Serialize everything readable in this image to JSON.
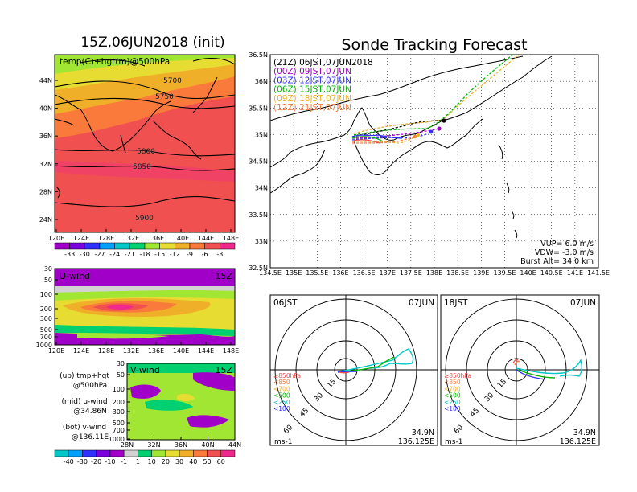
{
  "title_left": "15Z,06JUN2018 (init)",
  "title_right": "Sonde Tracking Forecast",
  "map_panel": {
    "label": "temp(C)+hgt(m)@500hPa",
    "lat_ticks": [
      "44N",
      "40N",
      "36N",
      "32N",
      "28N",
      "24N"
    ],
    "lon_ticks": [
      "120E",
      "124E",
      "128E",
      "132E",
      "136E",
      "140E",
      "144E",
      "148E"
    ],
    "contour_labels": [
      "5700",
      "5750",
      "5800",
      "5850",
      "5900"
    ]
  },
  "temp_colorbar": {
    "labels": [
      "-33",
      "-30",
      "-27",
      "-24",
      "-21",
      "-18",
      "-15",
      "-12",
      "-9",
      "-6",
      "-3"
    ],
    "colors": [
      "#a000c8",
      "#7a00e0",
      "#3030ff",
      "#00a0ff",
      "#00c8c8",
      "#00d070",
      "#a0e632",
      "#e6dc32",
      "#f0af28",
      "#fa7a3c",
      "#f05050",
      "#f0288c"
    ]
  },
  "uwind_panel": {
    "label": "U-wind",
    "time": "15Z",
    "y_ticks": [
      "30",
      "50",
      "100",
      "200",
      "300",
      "500",
      "700",
      "1000"
    ],
    "lon_ticks": [
      "120E",
      "124E",
      "128E",
      "132E",
      "136E",
      "140E",
      "144E",
      "148E"
    ]
  },
  "vwind_panel": {
    "label": "V-wind",
    "time": "15Z",
    "y_ticks": [
      "30",
      "50",
      "100",
      "200",
      "300",
      "500",
      "700",
      "1000"
    ],
    "lat_ticks": [
      "28N",
      "32N",
      "36N",
      "40N",
      "44N"
    ]
  },
  "legend_notes": [
    {
      "line1": "(up) tmp+hgt",
      "line2": "@500hPa"
    },
    {
      "line1": "(mid) u-wind",
      "line2": "@34.86N"
    },
    {
      "line1": "(bot) v-wind",
      "line2": "@136.11E"
    }
  ],
  "wind_colorbar": {
    "labels": [
      "-40",
      "-30",
      "-20",
      "-10",
      "-1",
      "1",
      "10",
      "20",
      "30",
      "40",
      "50",
      "60"
    ],
    "colors": [
      "#00c8c8",
      "#00a0ff",
      "#3030ff",
      "#7a00e0",
      "#a000c8",
      "#d2d2d2",
      "#00d070",
      "#a0e632",
      "#e6dc32",
      "#f0af28",
      "#fa7a3c",
      "#f05050",
      "#f0288c"
    ]
  },
  "track_map": {
    "lat_ticks": [
      "36.5N",
      "36N",
      "35.5N",
      "35N",
      "34.5N",
      "34N",
      "33.5N",
      "33N",
      "32.5N"
    ],
    "lon_ticks": [
      "134.5E",
      "135E",
      "135.5E",
      "136E",
      "136.5E",
      "137E",
      "137.5E",
      "138E",
      "138.5E",
      "139E",
      "139.5E",
      "140E",
      "140.5E",
      "141E",
      "141.5E"
    ],
    "legend": [
      {
        "text": "(21Z) 06JST,07JUN2018",
        "color": "#000000"
      },
      {
        "text": "(00Z) 09JST,07JUN",
        "color": "#a000c8"
      },
      {
        "text": "(03Z) 12JST,07JUN",
        "color": "#3030ff"
      },
      {
        "text": "(06Z) 15JST,07JUN",
        "color": "#00b400"
      },
      {
        "text": "(09Z) 18JST,07JUN",
        "color": "#f0af28"
      },
      {
        "text": "(12Z) 21JST,07JUN",
        "color": "#fa7a3c"
      }
    ],
    "params": {
      "vup": "VUP= 6.0 m/s",
      "vdw": "VDW= -3.0 m/s",
      "burst": "Burst Alt= 34.0 km"
    }
  },
  "polar_panels": [
    {
      "time": "06JST",
      "date": "07JUN",
      "lat": "34.9N",
      "lon": "136.125E",
      "unit": "ms-1"
    },
    {
      "time": "18JST",
      "date": "07JUN",
      "lat": "34.9N",
      "lon": "136.125E",
      "unit": "ms-1"
    }
  ],
  "polar_rings": [
    "15",
    "30",
    "45",
    "60"
  ],
  "polar_legend": [
    {
      "text": "≥850hPa",
      "color": "#f05050"
    },
    {
      "text": "<850",
      "color": "#fa7a3c"
    },
    {
      "text": "<700",
      "color": "#f0af28"
    },
    {
      "text": "<500",
      "color": "#00b400"
    },
    {
      "text": "<250",
      "color": "#00c8c8"
    },
    {
      "text": "<100",
      "color": "#3030ff"
    }
  ],
  "chart_data": {
    "type": "line",
    "title": "Sonde Tracking Forecast",
    "series": [
      {
        "name": "(21Z) 06JST,07JUN2018",
        "lon": [
          136.2,
          136.6,
          137.0,
          137.5,
          138.0,
          140.0
        ],
        "lat": [
          35.05,
          35.1,
          35.15,
          35.22,
          35.3,
          37.0
        ]
      },
      {
        "name": "(00Z) 09JST,07JUN",
        "lon": [
          136.2,
          136.6,
          137.0,
          137.5,
          137.9
        ],
        "lat": [
          34.95,
          35.0,
          35.0,
          35.05,
          35.1
        ]
      },
      {
        "name": "(03Z) 12JST,07JUN",
        "lon": [
          136.2,
          136.6,
          137.0,
          137.4,
          137.7
        ],
        "lat": [
          34.92,
          34.95,
          34.98,
          35.0,
          35.05
        ]
      },
      {
        "name": "(06Z) 15JST,07JUN",
        "lon": [
          136.2,
          136.8,
          137.3,
          138.0,
          140.2
        ],
        "lat": [
          34.9,
          34.9,
          34.92,
          35.0,
          37.0
        ]
      },
      {
        "name": "(09Z) 18JST,07JUN",
        "lon": [
          136.2,
          136.6,
          137.1,
          137.4
        ],
        "lat": [
          34.9,
          34.88,
          34.85,
          34.85
        ]
      },
      {
        "name": "(12Z) 21JST,07JUN",
        "lon": [
          136.2,
          136.6,
          137.0,
          137.3
        ],
        "lat": [
          34.88,
          34.87,
          34.85,
          34.84
        ]
      }
    ],
    "xlim": [
      134.5,
      141.5
    ],
    "ylim": [
      32.5,
      36.5
    ]
  }
}
